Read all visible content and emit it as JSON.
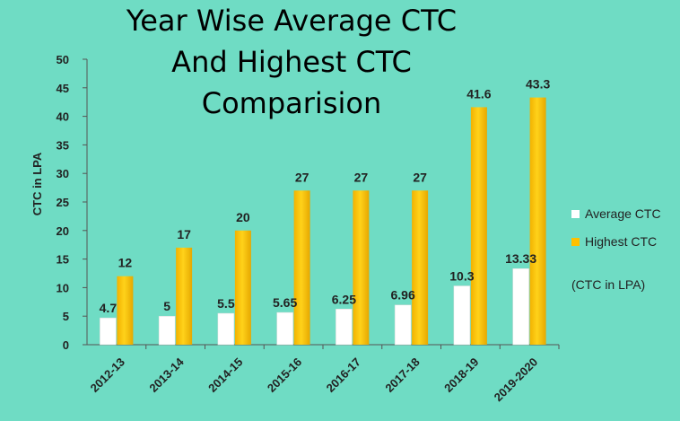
{
  "chart_data": {
    "type": "bar",
    "title_lines": [
      "Year Wise Average CTC",
      "And Highest CTC",
      "Comparision"
    ],
    "ylabel": "CTC in LPA",
    "xlabel": "",
    "ylim": [
      0,
      50
    ],
    "yticks": [
      0,
      5,
      10,
      15,
      20,
      25,
      30,
      35,
      40,
      45,
      50
    ],
    "categories": [
      "2012-13",
      "2013-14",
      "2014-15",
      "2015-16",
      "2016-17",
      "2017-18",
      "2018-19",
      "2019-2020"
    ],
    "series": [
      {
        "name": "Average CTC",
        "values": [
          4.7,
          5,
          5.5,
          5.65,
          6.25,
          6.96,
          10.3,
          13.33
        ],
        "labels": [
          "4.7",
          "5",
          "5.5",
          "5.65",
          "6.25",
          "6.96",
          "10.3",
          "13.33"
        ],
        "color": "#ffffff"
      },
      {
        "name": "Highest CTC",
        "values": [
          12,
          17,
          20,
          27,
          27,
          27,
          41.6,
          43.3
        ],
        "labels": [
          "12",
          "17",
          "20",
          "27",
          "27",
          "27",
          "41.6",
          "43.3"
        ],
        "color": "#ffc000"
      }
    ],
    "legend_position": "right",
    "note": "(CTC in LPA)",
    "grid": false
  }
}
